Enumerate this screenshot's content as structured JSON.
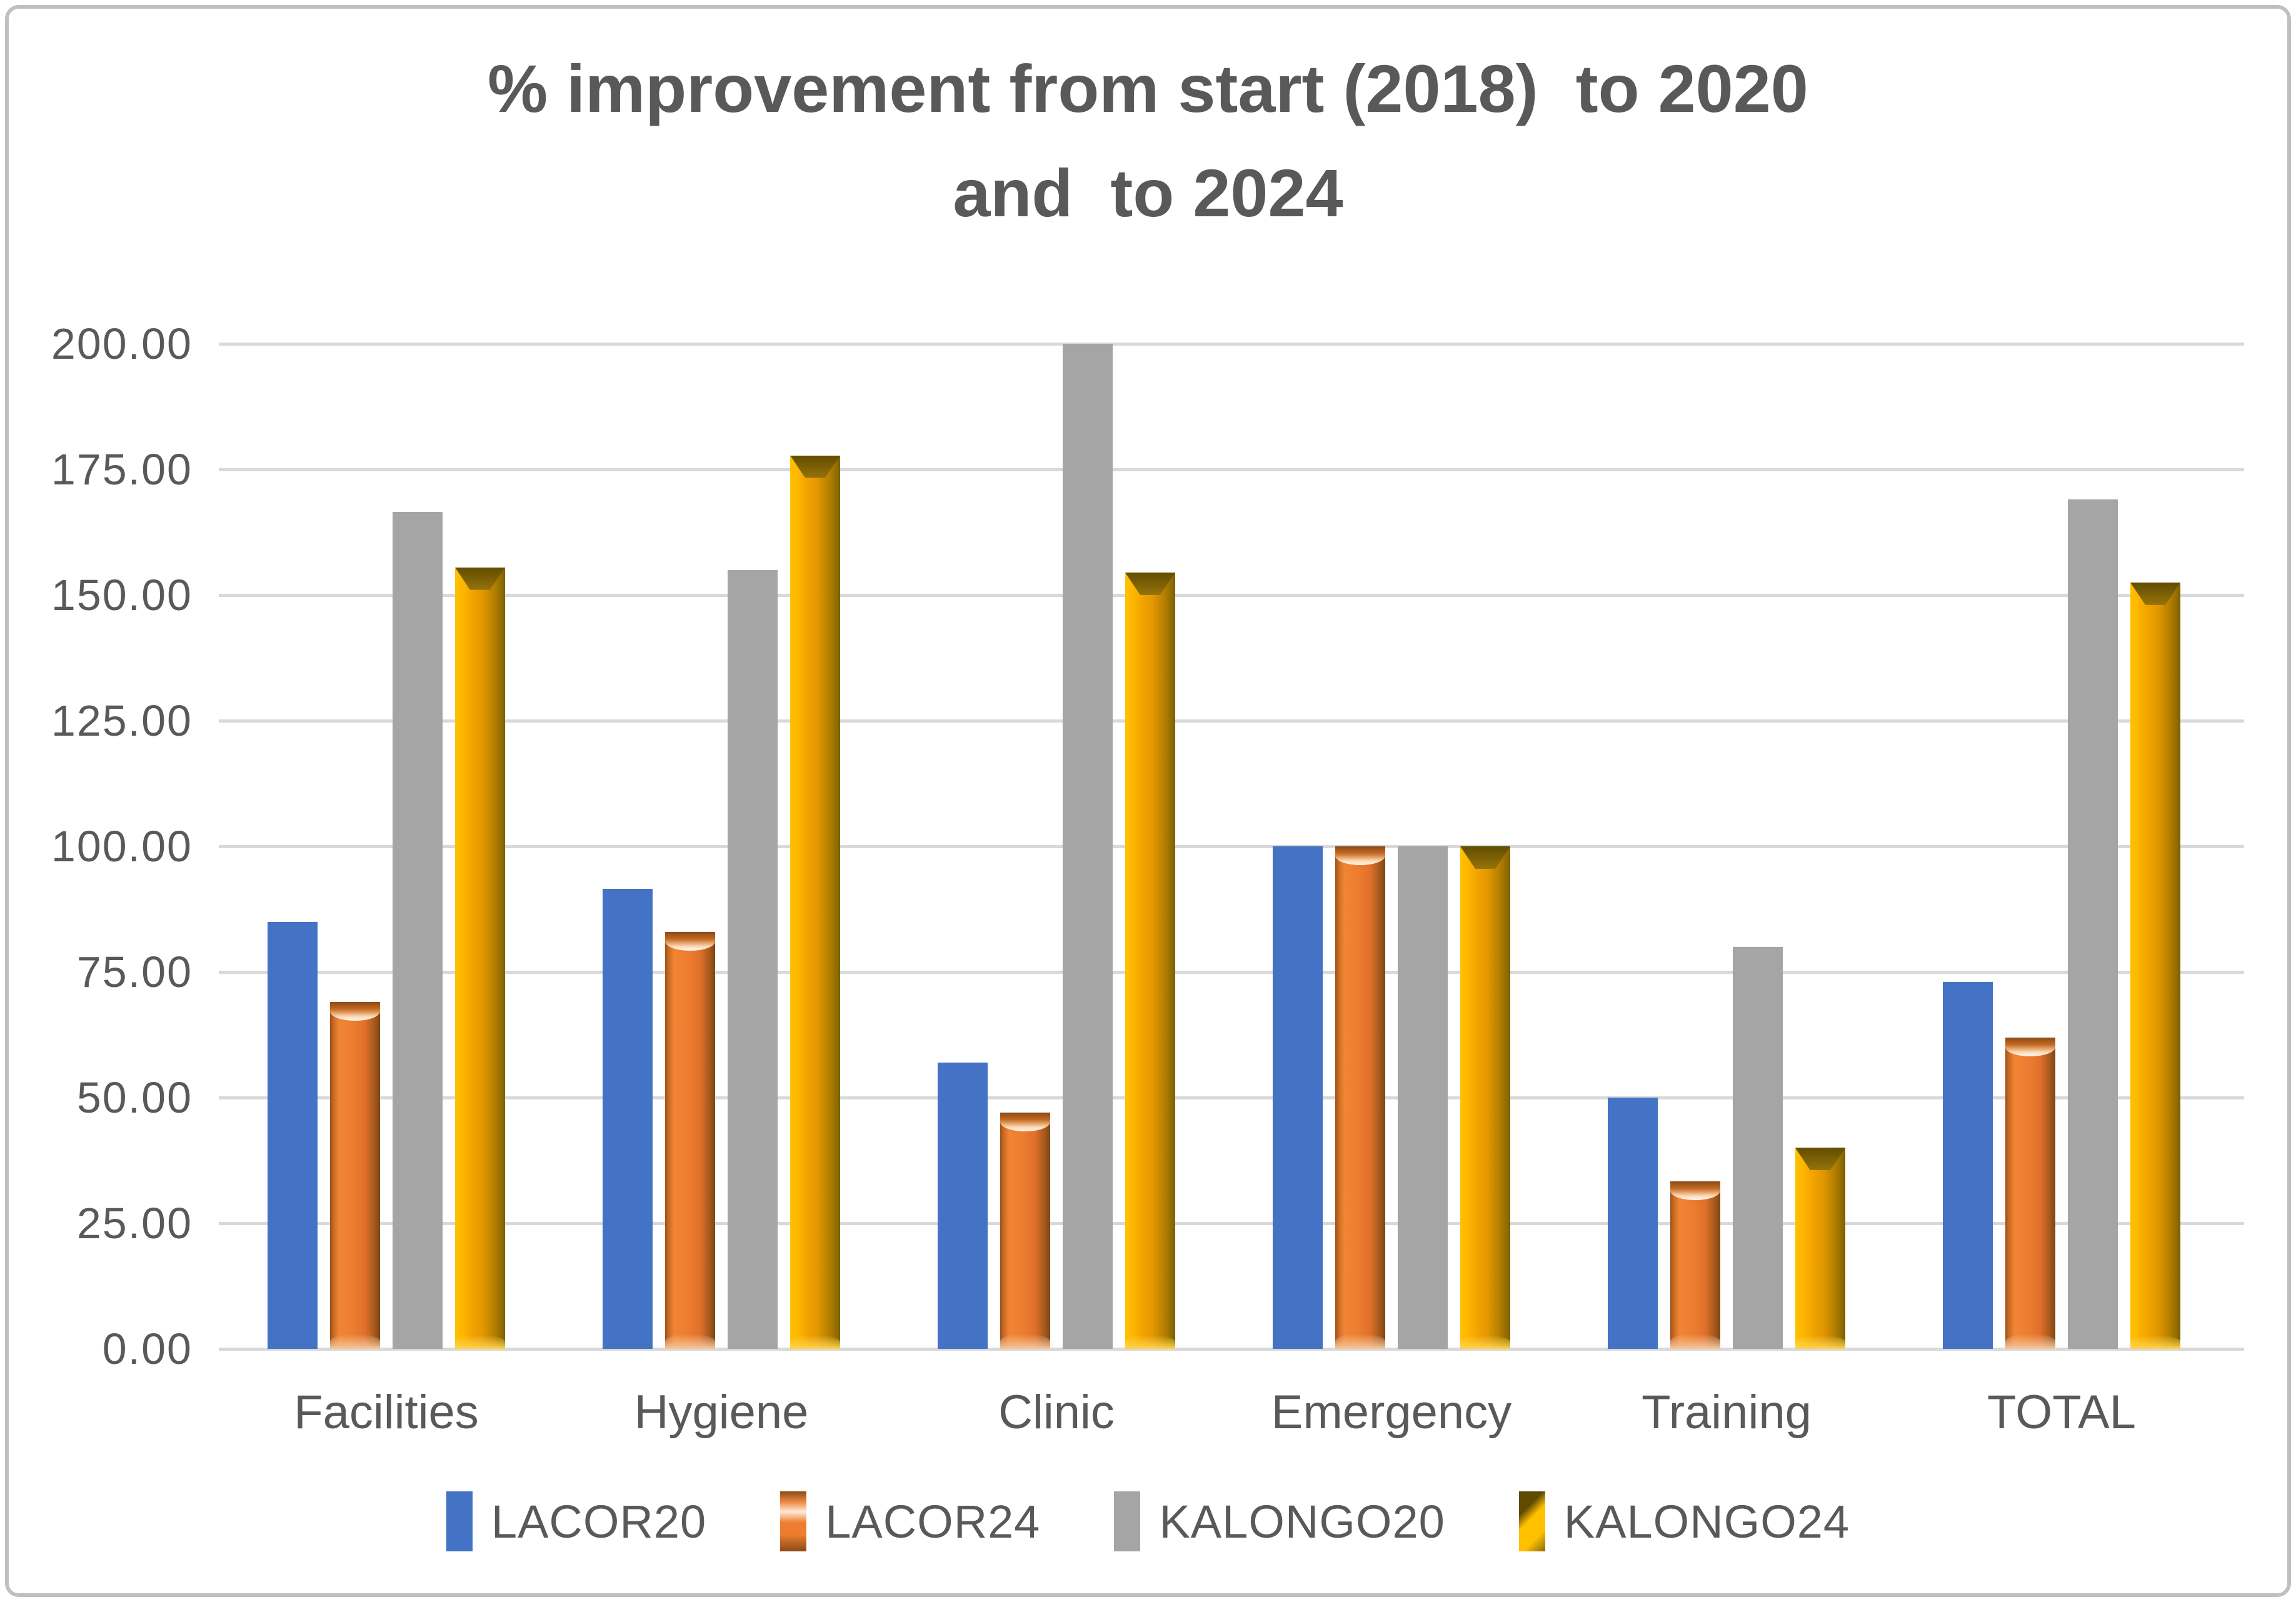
{
  "title": {
    "line1": "% improvement from start (2018)  to 2020",
    "line2": "and  to 2024"
  },
  "y_axis": {
    "tick_labels": [
      "200.00",
      "175.00",
      "150.00",
      "125.00",
      "100.00",
      "75.00",
      "50.00",
      "25.00",
      "0.00"
    ],
    "min": 0,
    "max": 200,
    "step": 25
  },
  "chart_data": {
    "type": "bar",
    "title": "% improvement from start (2018)  to 2020 and  to 2024",
    "categories": [
      "Facilities",
      "Hygiene",
      "Clinic",
      "Emergency",
      "Training",
      "TOTAL"
    ],
    "series": [
      {
        "name": "LACOR20",
        "color": "#4472C4",
        "style": "flat",
        "values": [
          85.0,
          91.5,
          57.0,
          100.0,
          50.0,
          73.0
        ]
      },
      {
        "name": "LACOR24",
        "color": "#ED7D31",
        "style": "bevel-orange",
        "values": [
          69.0,
          83.0,
          47.0,
          100.0,
          33.3,
          62.0
        ]
      },
      {
        "name": "KALONGO20",
        "color": "#A5A5A5",
        "style": "flat",
        "values": [
          166.5,
          155.0,
          200.0,
          100.0,
          80.0,
          169.0
        ]
      },
      {
        "name": "KALONGO24",
        "color": "#FFC000",
        "style": "bevel-gold",
        "values": [
          155.5,
          177.8,
          154.5,
          100.0,
          40.0,
          152.5
        ]
      }
    ],
    "ylim": [
      0,
      200
    ],
    "grid": true,
    "legend_position": "bottom"
  },
  "legend": [
    {
      "label": "LACOR20",
      "color": "#4472C4",
      "style": "flat"
    },
    {
      "label": "LACOR24",
      "color": "#ED7D31",
      "style": "bevel-orange"
    },
    {
      "label": "KALONGO20",
      "color": "#A5A5A5",
      "style": "flat"
    },
    {
      "label": "KALONGO24",
      "color": "#FFC000",
      "style": "bevel-gold"
    }
  ],
  "colors": {
    "text": "#595959",
    "gridline": "#D9D9D9",
    "frame_border": "#BFBFBF",
    "background": "#FFFFFF"
  }
}
